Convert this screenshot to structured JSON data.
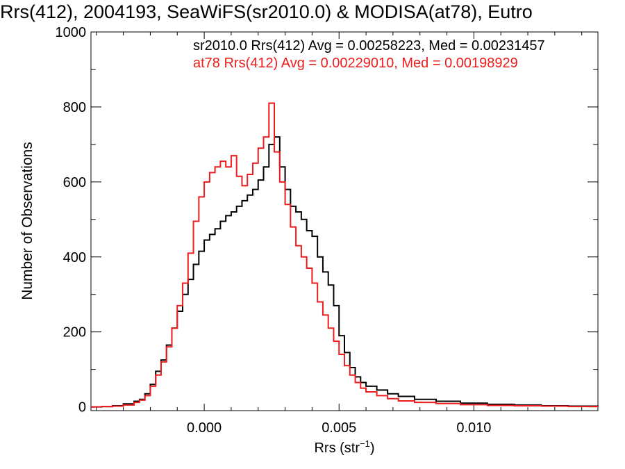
{
  "chart_data": {
    "type": "line",
    "title": "Rrs(412), 2004193, SeaWiFS(sr2010.0) & MODISA(at78), Eutro",
    "xlabel_main": "Rrs (str",
    "xlabel_sup": "−1",
    "xlabel_end": ")",
    "ylabel": "Number of Observations",
    "xlim": [
      -0.0042,
      0.0146
    ],
    "ylim": [
      -10,
      1000
    ],
    "xticks": [
      0.0,
      0.005,
      0.01
    ],
    "xtick_labels": [
      "0.000",
      "0.005",
      "0.010"
    ],
    "yticks": [
      0,
      200,
      400,
      600,
      800,
      1000
    ],
    "ytick_labels": [
      "0",
      "200",
      "400",
      "600",
      "800",
      "1000"
    ],
    "annotations": [
      "sr2010.0 Rrs(412) Avg = 0.00258223, Med = 0.00231457",
      "at78 Rrs(412) Avg = 0.00229010, Med = 0.00198929"
    ],
    "series": [
      {
        "name": "sr2010.0",
        "color": "#000000",
        "x": [
          -0.0042,
          -0.0038,
          -0.0034,
          -0.003,
          -0.0026,
          -0.0024,
          -0.0022,
          -0.002,
          -0.0018,
          -0.0016,
          -0.0014,
          -0.0012,
          -0.001,
          -0.0008,
          -0.0006,
          -0.0004,
          -0.0002,
          0.0,
          0.0002,
          0.0004,
          0.0006,
          0.0008,
          0.001,
          0.0012,
          0.0014,
          0.0016,
          0.0018,
          0.002,
          0.0022,
          0.0024,
          0.0026,
          0.0028,
          0.003,
          0.0032,
          0.0034,
          0.0036,
          0.0038,
          0.004,
          0.0042,
          0.0044,
          0.0046,
          0.0048,
          0.005,
          0.0052,
          0.0054,
          0.0056,
          0.0058,
          0.006,
          0.0064,
          0.0068,
          0.0072,
          0.0078,
          0.0086,
          0.0095,
          0.0105,
          0.0115,
          0.0125,
          0.0135,
          0.0146
        ],
        "y": [
          0,
          1,
          3,
          8,
          15,
          20,
          35,
          60,
          95,
          125,
          165,
          210,
          255,
          300,
          340,
          380,
          415,
          445,
          460,
          475,
          495,
          510,
          520,
          535,
          550,
          565,
          580,
          605,
          640,
          700,
          720,
          640,
          580,
          535,
          520,
          500,
          470,
          455,
          400,
          360,
          325,
          270,
          190,
          145,
          105,
          80,
          65,
          55,
          45,
          35,
          28,
          20,
          15,
          10,
          7,
          5,
          3,
          2,
          1
        ]
      },
      {
        "name": "at78",
        "color": "#ee1c1c",
        "x": [
          -0.0042,
          -0.0038,
          -0.0034,
          -0.003,
          -0.0026,
          -0.0024,
          -0.0022,
          -0.002,
          -0.0018,
          -0.0016,
          -0.0014,
          -0.0012,
          -0.001,
          -0.0008,
          -0.0006,
          -0.0004,
          -0.0002,
          0.0,
          0.0002,
          0.0004,
          0.0006,
          0.0008,
          0.001,
          0.0012,
          0.0014,
          0.0016,
          0.0018,
          0.002,
          0.0022,
          0.0024,
          0.0026,
          0.0028,
          0.003,
          0.0032,
          0.0034,
          0.0036,
          0.0038,
          0.004,
          0.0042,
          0.0044,
          0.0046,
          0.0048,
          0.005,
          0.0052,
          0.0054,
          0.0056,
          0.0058,
          0.006,
          0.0064,
          0.0068,
          0.0072,
          0.0078,
          0.0086,
          0.0095,
          0.0105,
          0.0115,
          0.0125,
          0.0135,
          0.0146
        ],
        "y": [
          0,
          1,
          2,
          5,
          12,
          18,
          30,
          55,
          85,
          120,
          160,
          210,
          270,
          330,
          410,
          495,
          560,
          600,
          625,
          640,
          655,
          640,
          670,
          615,
          590,
          620,
          650,
          690,
          720,
          810,
          680,
          600,
          540,
          480,
          430,
          400,
          370,
          330,
          280,
          245,
          210,
          175,
          140,
          110,
          85,
          65,
          50,
          40,
          30,
          22,
          16,
          12,
          9,
          6,
          4,
          3,
          2,
          1,
          0
        ]
      }
    ]
  }
}
